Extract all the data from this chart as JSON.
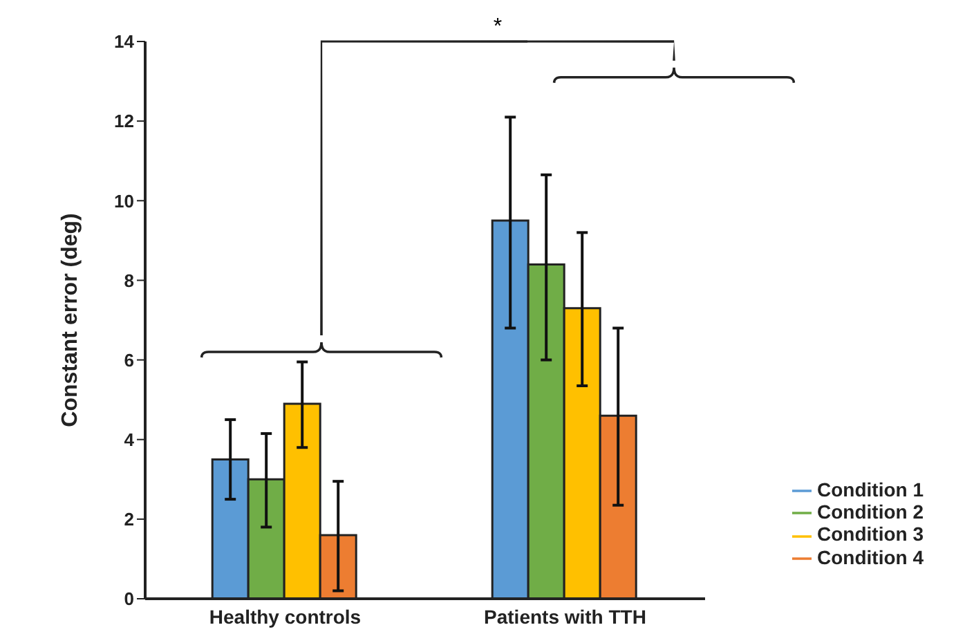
{
  "chart_data": {
    "type": "bar",
    "ylabel": "Constant error (deg)",
    "categories": [
      "Healthy controls",
      "Patients with TTH"
    ],
    "series": [
      {
        "name": "Condition 1",
        "color": "#5b9bd5",
        "values": [
          3.5,
          9.5
        ],
        "errors": [
          [
            2.5,
            4.5
          ],
          [
            6.8,
            12.1
          ]
        ]
      },
      {
        "name": "Condition 2",
        "color": "#70ad47",
        "values": [
          3.0,
          8.4
        ],
        "errors": [
          [
            1.8,
            4.15
          ],
          [
            6.0,
            10.65
          ]
        ]
      },
      {
        "name": "Condition 3",
        "color": "#ffc000",
        "values": [
          4.9,
          7.3
        ],
        "errors": [
          [
            3.8,
            5.95
          ],
          [
            5.35,
            9.2
          ]
        ]
      },
      {
        "name": "Condition 4",
        "color": "#ed7d31",
        "values": [
          1.6,
          4.6
        ],
        "errors": [
          [
            0.2,
            2.95
          ],
          [
            2.35,
            6.8
          ]
        ]
      }
    ],
    "ylim": [
      0,
      14
    ],
    "yticks": [
      0,
      2,
      4,
      6,
      8,
      10,
      12,
      14
    ],
    "grid": false,
    "legend": "bottom right",
    "annotations": [
      "*"
    ]
  }
}
